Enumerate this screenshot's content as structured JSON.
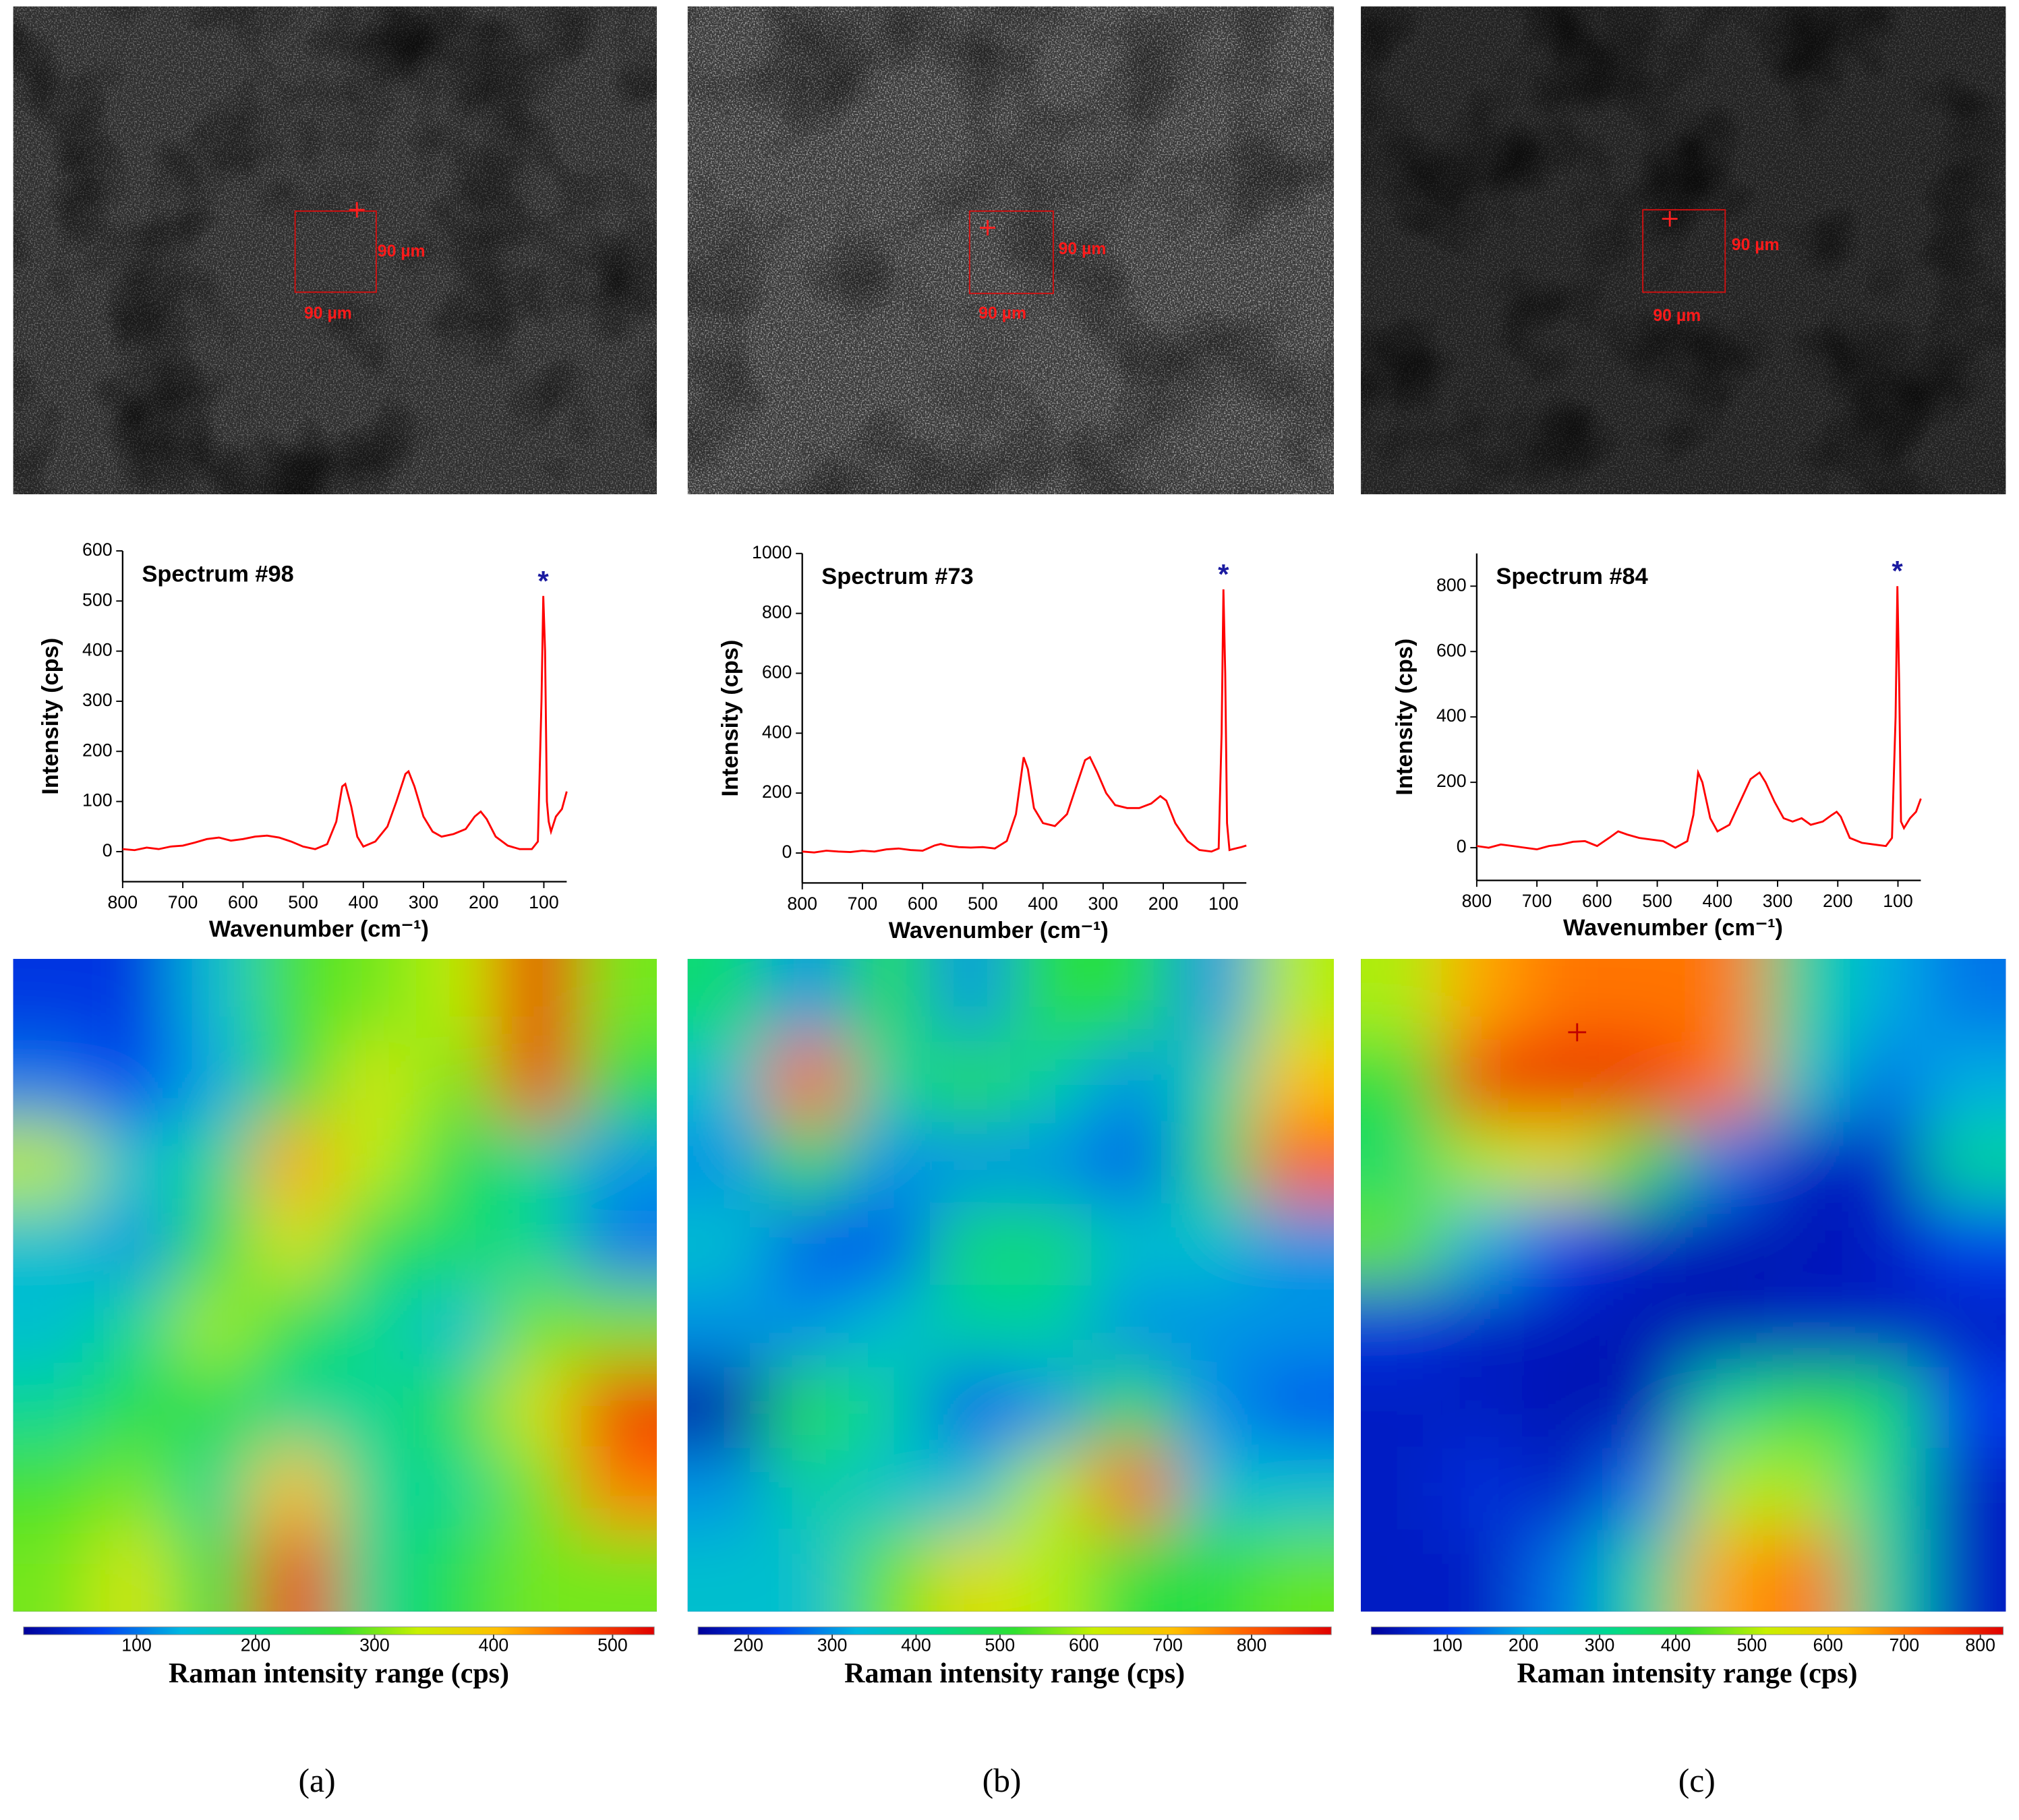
{
  "panels": [
    {
      "label": "(a)",
      "width_label": "90 µm",
      "height_label": "90 µm"
    },
    {
      "label": "(b)",
      "width_label": "90 µm",
      "height_label": "90 µm"
    },
    {
      "label": "(c)",
      "width_label": "90 µm",
      "height_label": "90 µm"
    }
  ],
  "chart_data": [
    {
      "type": "line",
      "title": "Spectrum #98",
      "x_label": "Wavenumber (cm⁻¹)",
      "y_label": "Intensity (cps)",
      "peak_marker": "*",
      "color": "#ff0000",
      "x": [
        800,
        780,
        760,
        740,
        720,
        700,
        680,
        660,
        640,
        620,
        600,
        580,
        560,
        540,
        520,
        500,
        480,
        460,
        445,
        435,
        430,
        420,
        410,
        400,
        380,
        360,
        345,
        330,
        325,
        315,
        300,
        285,
        270,
        250,
        230,
        215,
        205,
        195,
        180,
        160,
        140,
        120,
        110,
        104,
        101,
        98,
        95,
        92,
        88,
        80,
        70,
        62
      ],
      "values": [
        5,
        3,
        8,
        5,
        10,
        12,
        18,
        25,
        28,
        22,
        25,
        30,
        32,
        28,
        20,
        10,
        5,
        15,
        60,
        130,
        135,
        90,
        30,
        10,
        20,
        50,
        100,
        155,
        160,
        130,
        70,
        40,
        30,
        35,
        45,
        70,
        80,
        65,
        30,
        12,
        5,
        5,
        20,
        300,
        510,
        400,
        100,
        60,
        40,
        70,
        85,
        120
      ],
      "xlim": [
        800,
        62
      ],
      "xticks": [
        800,
        700,
        600,
        500,
        400,
        300,
        200,
        100
      ],
      "ylim": [
        -60,
        600
      ],
      "yticks": [
        0,
        100,
        200,
        300,
        400,
        500,
        600
      ]
    },
    {
      "type": "line",
      "title": "Spectrum #73",
      "x_label": "Wavenumber (cm⁻¹)",
      "y_label": "Intensity (cps)",
      "peak_marker": "*",
      "color": "#ff0000",
      "x": [
        800,
        780,
        760,
        740,
        720,
        700,
        680,
        660,
        640,
        620,
        600,
        580,
        570,
        560,
        540,
        520,
        500,
        480,
        460,
        445,
        432,
        425,
        415,
        400,
        380,
        360,
        345,
        330,
        322,
        310,
        295,
        280,
        260,
        240,
        220,
        205,
        195,
        180,
        160,
        140,
        120,
        108,
        103,
        100,
        97,
        94,
        90,
        80,
        70,
        62
      ],
      "values": [
        5,
        2,
        8,
        5,
        3,
        8,
        5,
        12,
        15,
        10,
        8,
        25,
        30,
        25,
        20,
        18,
        20,
        15,
        40,
        130,
        320,
        280,
        150,
        100,
        90,
        130,
        220,
        310,
        320,
        270,
        200,
        160,
        150,
        150,
        165,
        190,
        175,
        100,
        40,
        10,
        5,
        15,
        400,
        880,
        600,
        100,
        10,
        15,
        20,
        25
      ],
      "xlim": [
        800,
        62
      ],
      "xticks": [
        800,
        700,
        600,
        500,
        400,
        300,
        200,
        100
      ],
      "ylim": [
        -100,
        1000
      ],
      "yticks": [
        0,
        200,
        400,
        600,
        800,
        1000
      ]
    },
    {
      "type": "line",
      "title": "Spectrum #84",
      "x_label": "Wavenumber (cm⁻¹)",
      "y_label": "Intensity (cps)",
      "peak_marker": "*",
      "color": "#ff0000",
      "x": [
        800,
        780,
        760,
        740,
        720,
        700,
        680,
        660,
        640,
        620,
        600,
        580,
        565,
        550,
        530,
        510,
        490,
        470,
        450,
        440,
        432,
        425,
        412,
        400,
        380,
        360,
        345,
        330,
        320,
        305,
        290,
        275,
        260,
        245,
        225,
        210,
        202,
        195,
        180,
        160,
        140,
        120,
        110,
        104,
        101,
        98,
        95,
        90,
        80,
        70,
        62
      ],
      "values": [
        5,
        0,
        10,
        5,
        0,
        -5,
        5,
        10,
        18,
        20,
        5,
        30,
        50,
        40,
        30,
        25,
        20,
        0,
        20,
        100,
        230,
        200,
        90,
        50,
        70,
        150,
        210,
        230,
        200,
        140,
        90,
        80,
        90,
        70,
        80,
        100,
        110,
        95,
        30,
        15,
        10,
        5,
        30,
        400,
        800,
        500,
        80,
        60,
        90,
        110,
        150
      ],
      "xlim": [
        800,
        62
      ],
      "xticks": [
        800,
        700,
        600,
        500,
        400,
        300,
        200,
        100
      ],
      "ylim": [
        -100,
        900
      ],
      "yticks": [
        0,
        200,
        400,
        600,
        800
      ]
    },
    {
      "type": "heatmap",
      "colorbar_label": "Raman intensity range (cps)",
      "colormap": [
        "#00009a",
        "#0040f0",
        "#00b8e0",
        "#00d890",
        "#30e030",
        "#c8f000",
        "#ffc000",
        "#ff5a00",
        "#e00000"
      ],
      "zlim": [
        5,
        535
      ],
      "zticks": [
        100,
        200,
        300,
        400,
        500
      ],
      "z": [
        [
          60,
          60,
          150,
          280,
          300,
          330,
          510,
          300
        ],
        [
          100,
          70,
          130,
          260,
          350,
          300,
          500,
          250
        ],
        [
          330,
          150,
          200,
          420,
          330,
          250,
          200,
          120
        ],
        [
          150,
          120,
          250,
          350,
          250,
          230,
          200,
          100
        ],
        [
          150,
          200,
          320,
          250,
          200,
          150,
          300,
          300
        ],
        [
          200,
          250,
          250,
          200,
          200,
          250,
          350,
          500
        ],
        [
          280,
          300,
          200,
          400,
          200,
          200,
          300,
          450
        ],
        [
          300,
          350,
          250,
          500,
          200,
          250,
          300,
          300
        ]
      ]
    },
    {
      "type": "heatmap",
      "colorbar_label": "Raman intensity range (cps)",
      "colormap": [
        "#00009a",
        "#0040f0",
        "#00b8e0",
        "#00d890",
        "#30e030",
        "#c8f000",
        "#ffc000",
        "#ff5a00",
        "#e00000"
      ],
      "zlim": [
        140,
        895
      ],
      "zticks": [
        200,
        300,
        400,
        500,
        600,
        700,
        800
      ],
      "z": [
        [
          450,
          300,
          500,
          300,
          500,
          500,
          300,
          600
        ],
        [
          350,
          800,
          400,
          500,
          400,
          300,
          400,
          700
        ],
        [
          300,
          500,
          300,
          300,
          300,
          250,
          450,
          800
        ],
        [
          350,
          250,
          250,
          450,
          450,
          350,
          350,
          300
        ],
        [
          300,
          300,
          350,
          400,
          400,
          300,
          300,
          300
        ],
        [
          150,
          500,
          400,
          250,
          300,
          500,
          300,
          250
        ],
        [
          300,
          400,
          350,
          350,
          600,
          800,
          350,
          350
        ],
        [
          350,
          350,
          550,
          650,
          600,
          500,
          500,
          550
        ]
      ]
    },
    {
      "type": "heatmap",
      "colorbar_label": "Raman intensity range (cps)",
      "colormap": [
        "#00009a",
        "#0040f0",
        "#00b8e0",
        "#00d890",
        "#30e030",
        "#c8f000",
        "#ffc000",
        "#ff5a00",
        "#e00000"
      ],
      "zlim": [
        0,
        830
      ],
      "zticks": [
        100,
        200,
        300,
        400,
        500,
        600,
        700,
        800
      ],
      "z": [
        [
          500,
          650,
          700,
          700,
          700,
          300,
          200,
          150
        ],
        [
          400,
          780,
          800,
          780,
          700,
          250,
          150,
          200
        ],
        [
          350,
          500,
          550,
          400,
          150,
          50,
          50,
          300
        ],
        [
          450,
          200,
          100,
          50,
          30,
          30,
          50,
          100
        ],
        [
          80,
          50,
          40,
          30,
          30,
          50,
          50,
          50
        ],
        [
          50,
          50,
          30,
          30,
          300,
          400,
          350,
          100
        ],
        [
          50,
          80,
          50,
          150,
          500,
          500,
          300,
          50
        ],
        [
          50,
          50,
          150,
          300,
          650,
          700,
          300,
          50
        ]
      ]
    }
  ]
}
